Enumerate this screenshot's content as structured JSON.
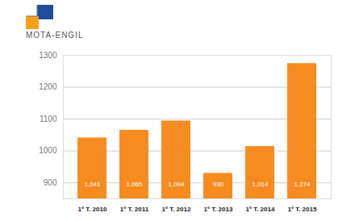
{
  "chart_data": {
    "type": "bar",
    "title": "MOTA-ENGIL",
    "categories": [
      "1º T. 2010",
      "1º T. 2011",
      "1º T. 2012",
      "1º T. 2013",
      "1º T. 2014",
      "1º T. 2015"
    ],
    "values": [
      1041,
      1065,
      1094,
      930,
      1014,
      1274
    ],
    "value_labels": [
      "1,041",
      "1,065",
      "1,094",
      "930",
      "1,014",
      "1,274"
    ],
    "color": "#f68b1f",
    "ylim": [
      850,
      1300
    ],
    "yticks": [
      900,
      1000,
      1100,
      1200,
      1300
    ],
    "grid": true,
    "data_labels": true
  }
}
